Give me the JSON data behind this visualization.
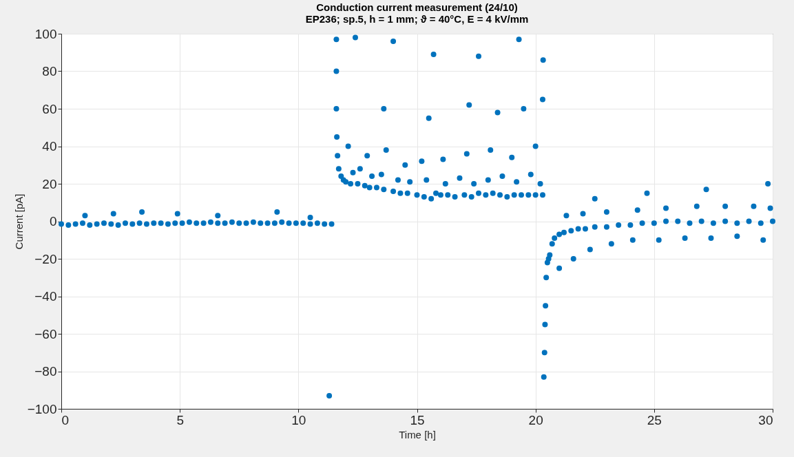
{
  "chart_data": {
    "type": "scatter",
    "title": "Conduction current measurement (24/10)",
    "subtitle": "EP236; sp.5, h = 1 mm; ϑ = 40°C, E = 4 kV/mm",
    "xlabel": "Time [h]",
    "ylabel": "Current [pA]",
    "xlim": [
      0,
      30
    ],
    "ylim": [
      -100,
      100
    ],
    "xticks": [
      0,
      5,
      10,
      15,
      20,
      25,
      30
    ],
    "yticks": [
      -100,
      -80,
      -60,
      -40,
      -20,
      0,
      20,
      40,
      60,
      80,
      100
    ],
    "grid": true,
    "marker": "circle",
    "series": [
      {
        "color": "#0072bd",
        "x": [
          0,
          0.3,
          0.6,
          0.9,
          1.2,
          1.5,
          1.8,
          2.1,
          2.4,
          2.7,
          3,
          3.3,
          3.6,
          3.9,
          4.2,
          4.5,
          4.8,
          5.1,
          5.4,
          5.7,
          6,
          6.3,
          6.6,
          6.9,
          7.2,
          7.5,
          7.8,
          8.1,
          8.4,
          8.7,
          9,
          9.3,
          9.6,
          9.9,
          10.2,
          10.5,
          10.8,
          11.1,
          11.4,
          1.0,
          2.2,
          3.4,
          4.9,
          6.6,
          9.1,
          10.5,
          11.3,
          11.6,
          11.6,
          11.6,
          11.62,
          11.65,
          11.7,
          11.8,
          11.9,
          12.0,
          12.2,
          12.5,
          12.8,
          13.0,
          13.3,
          13.6,
          14.0,
          14.3,
          14.6,
          15.0,
          15.3,
          15.6,
          15.8,
          16.0,
          16.3,
          16.6,
          17.0,
          17.3,
          17.6,
          17.9,
          18.2,
          18.5,
          18.8,
          19.1,
          19.4,
          19.7,
          20.0,
          20.3,
          12.3,
          12.6,
          13.1,
          13.5,
          14.2,
          14.7,
          15.4,
          16.2,
          16.8,
          17.4,
          18.0,
          18.6,
          19.2,
          19.8,
          20.2,
          12.1,
          12.9,
          13.7,
          14.5,
          15.2,
          16.1,
          17.1,
          18.1,
          19.0,
          20.0,
          13.6,
          15.5,
          17.2,
          18.4,
          19.5,
          20.3,
          12.4,
          14.0,
          15.7,
          17.6,
          19.3,
          20.32,
          20.35,
          20.38,
          20.4,
          20.42,
          20.45,
          20.5,
          20.55,
          20.6,
          20.7,
          20.8,
          21.0,
          21.2,
          21.5,
          21.8,
          22.1,
          22.5,
          23.0,
          23.5,
          24.0,
          24.5,
          25.0,
          25.5,
          26.0,
          26.5,
          27.0,
          27.5,
          28.0,
          28.5,
          29.0,
          29.5,
          30.0,
          21.0,
          21.6,
          22.3,
          23.2,
          24.1,
          25.2,
          26.3,
          27.4,
          28.5,
          29.6,
          21.3,
          22.0,
          23.0,
          24.3,
          25.5,
          26.8,
          28.0,
          29.2,
          29.9,
          22.5,
          24.7,
          27.2,
          29.8
        ],
        "values": [
          -1.5,
          -2,
          -1.5,
          -1,
          -2,
          -1.5,
          -1,
          -1.5,
          -2,
          -1,
          -1.5,
          -1,
          -1.5,
          -1,
          -1,
          -1.5,
          -1,
          -1,
          -0.5,
          -1,
          -1,
          -0.5,
          -1,
          -1,
          -0.5,
          -1,
          -1,
          -0.5,
          -1,
          -1,
          -1,
          -0.5,
          -1,
          -1,
          -1,
          -1.5,
          -1,
          -1.5,
          -1.5,
          3,
          4,
          5,
          4,
          3,
          5,
          2,
          -93,
          97,
          80,
          60,
          45,
          35,
          28,
          24,
          22,
          21,
          20,
          20,
          19,
          18,
          18,
          17,
          16,
          15,
          15,
          14,
          13,
          12,
          15,
          14,
          14,
          13,
          14,
          13,
          15,
          14,
          15,
          14,
          13,
          14,
          14,
          14,
          14,
          14,
          26,
          28,
          24,
          25,
          22,
          21,
          22,
          20,
          23,
          20,
          22,
          24,
          21,
          25,
          20,
          40,
          35,
          38,
          30,
          32,
          33,
          36,
          38,
          34,
          40,
          60,
          55,
          62,
          58,
          60,
          65,
          98,
          96,
          89,
          88,
          97,
          86,
          -83,
          -70,
          -55,
          -45,
          -30,
          -22,
          -20,
          -18,
          -12,
          -9,
          -7,
          -6,
          -5,
          -4,
          -4,
          -3,
          -3,
          -2,
          -2,
          -1,
          -1,
          0,
          0,
          -1,
          0,
          -1,
          0,
          -1,
          0,
          -1,
          0,
          -25,
          -20,
          -15,
          -12,
          -10,
          -10,
          -9,
          -9,
          -8,
          -10,
          3,
          4,
          5,
          6,
          7,
          8,
          8,
          8,
          7,
          12,
          15,
          17,
          20
        ]
      }
    ]
  }
}
